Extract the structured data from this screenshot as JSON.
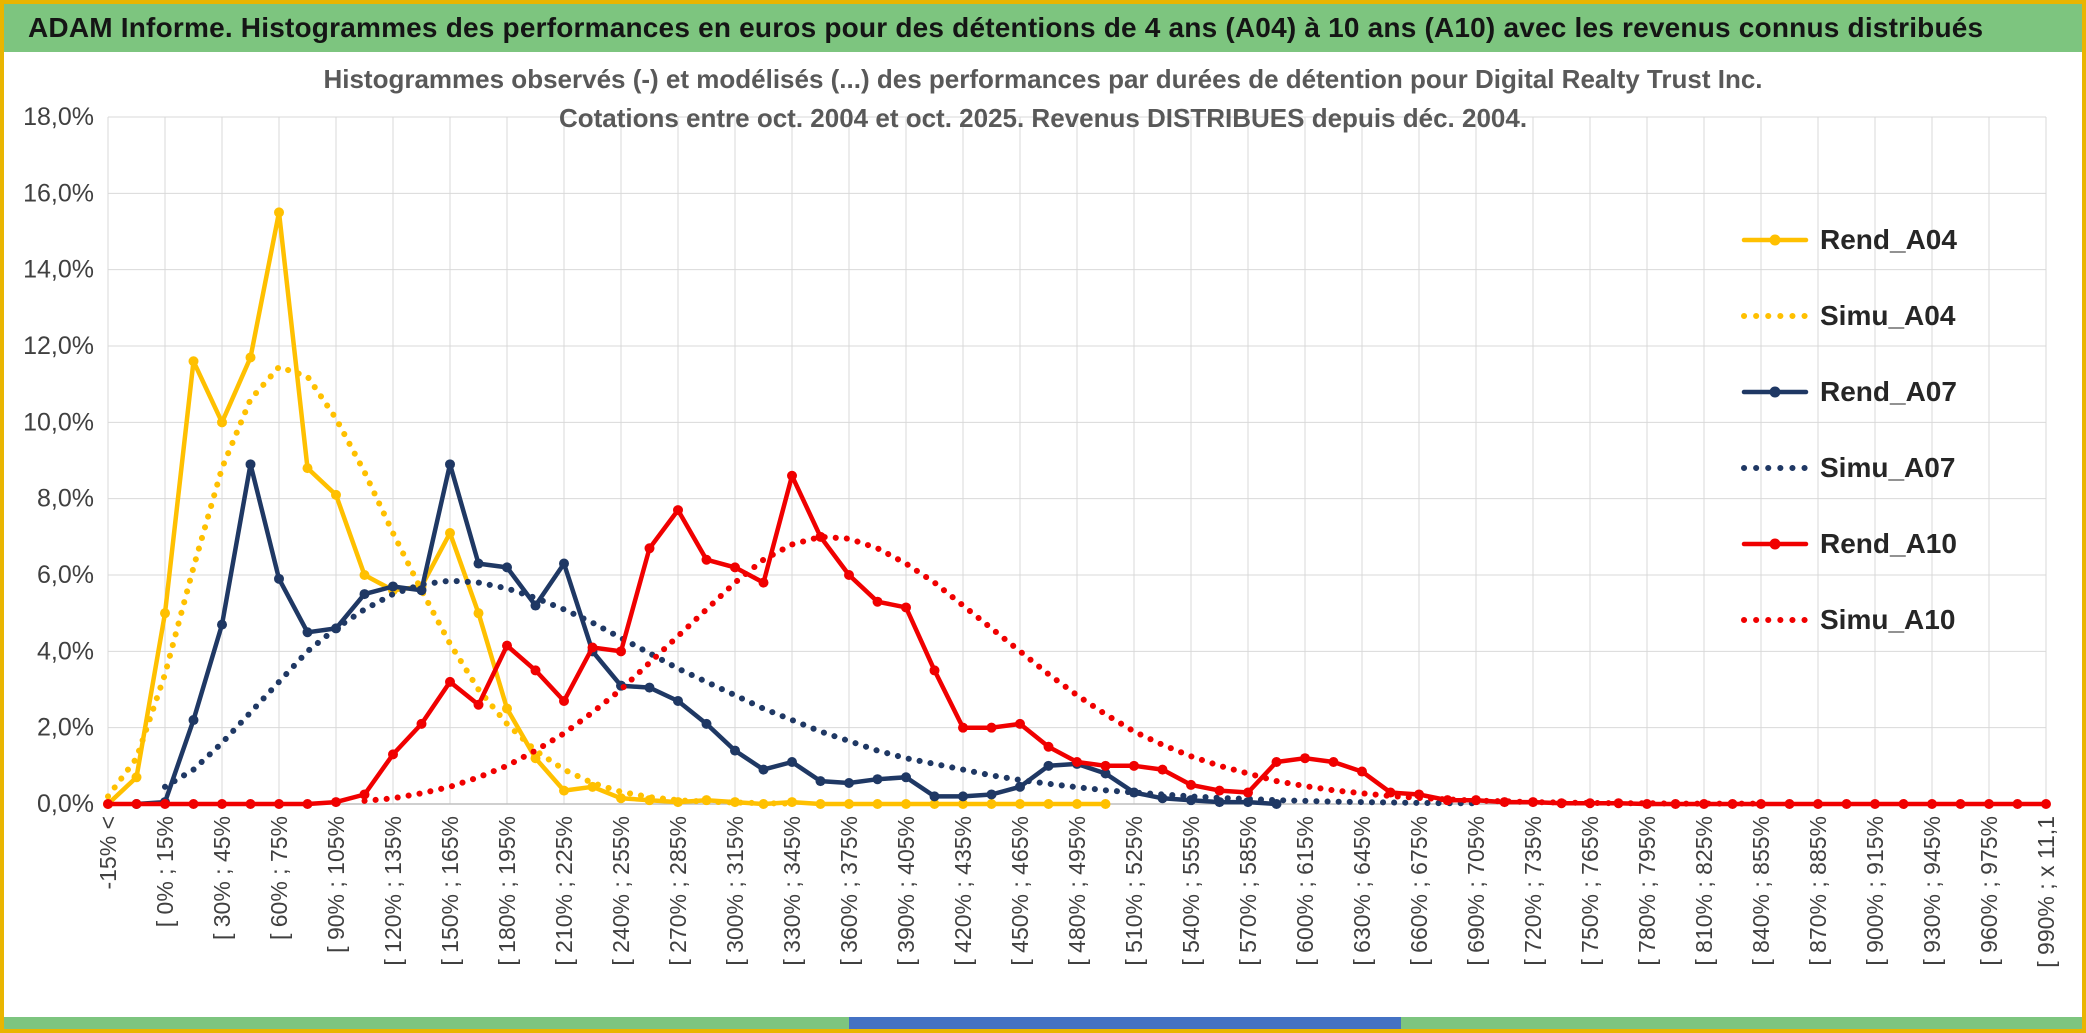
{
  "header": {
    "title": "ADAM Informe. Histogrammes des performances en euros pour des détentions de 4 ans (A04) à 10 ans (A10) avec les revenus connus distribués"
  },
  "colors": {
    "frame_border": "#E9B500",
    "header_bg": "#7DC57F",
    "bottom_bar_green": "#7DC57F",
    "scrollbar_blue": "#4472C4",
    "grid": "#D9D9D9",
    "axis_line": "#BFBFBF",
    "axis_text": "#404040",
    "title_text": "#595959",
    "gold": "#FFC000",
    "navy": "#1F3864",
    "red": "#F00000"
  },
  "chart_data": {
    "type": "line",
    "title": "Histogrammes observés (-) et modélisés (...) des performances par durées de détention pour Digital Realty Trust Inc.",
    "subtitle": "Cotations entre oct. 2004 et oct. 2025. Revenus DISTRIBUES depuis déc. 2004.",
    "xlabel": "",
    "ylabel": "",
    "ylim": [
      0,
      18
    ],
    "y_step": 2,
    "grid": true,
    "legend_position": "right",
    "y_tick_labels": [
      "0,0%",
      "2,0%",
      "4,0%",
      "6,0%",
      "8,0%",
      "10,0%",
      "12,0%",
      "14,0%",
      "16,0%",
      "18,0%"
    ],
    "bins_per_tick": 2,
    "n_bins": 69,
    "x_tick_labels": [
      "-15% <",
      "[ 0% ; 15%",
      "[ 30% ; 45%",
      "[ 60% ; 75%",
      "[ 90% ; 105%",
      "[ 120% ; 135%",
      "[ 150% ; 165%",
      "[ 180% ; 195%",
      "[ 210% ; 225%",
      "[ 240% ; 255%",
      "[ 270% ; 285%",
      "[ 300% ; 315%",
      "[ 330% ; 345%",
      "[ 360% ; 375%",
      "[ 390% ; 405%",
      "[ 420% ; 435%",
      "[ 450% ; 465%",
      "[ 480% ; 495%",
      "[ 510% ; 525%",
      "[ 540% ; 555%",
      "[ 570% ; 585%",
      "[ 600% ; 615%",
      "[ 630% ; 645%",
      "[ 660% ; 675%",
      "[ 690% ; 705%",
      "[ 720% ; 735%",
      "[ 750% ; 765%",
      "[ 780% ; 795%",
      "[ 810% ; 825%",
      "[ 840% ; 855%",
      "[ 870% ; 885%",
      "[ 900% ; 915%",
      "[ 930% ; 945%",
      "[ 960% ; 975%",
      "[ 990% ; x 11,1"
    ],
    "series": [
      {
        "name": "Rend_A04",
        "color": "#FFC000",
        "style": "solid",
        "markers": true,
        "start": 0,
        "values": [
          0,
          0.7,
          5.0,
          11.6,
          10.0,
          11.7,
          15.5,
          8.8,
          8.1,
          6.0,
          5.6,
          5.7,
          7.1,
          5.0,
          2.5,
          1.2,
          0.35,
          0.45,
          0.15,
          0.1,
          0.05,
          0.1,
          0.05,
          0,
          0.05,
          0,
          0,
          0,
          0,
          0,
          0,
          0,
          0,
          0,
          0,
          0
        ]
      },
      {
        "name": "Simu_A04",
        "color": "#FFC000",
        "style": "dotted",
        "markers": false,
        "start": 0,
        "values": [
          0.2,
          1.2,
          3.4,
          6.2,
          8.8,
          10.6,
          11.45,
          11.2,
          10.1,
          8.7,
          7.1,
          5.6,
          4.2,
          3.0,
          2.1,
          1.4,
          0.9,
          0.55,
          0.32,
          0.18,
          0.1,
          0.06,
          0.04,
          0.02,
          0.01
        ]
      },
      {
        "name": "Rend_A07",
        "color": "#1F3864",
        "style": "solid",
        "markers": true,
        "start": 1,
        "values": [
          0,
          0.05,
          2.2,
          4.7,
          8.9,
          5.9,
          4.5,
          4.6,
          5.5,
          5.7,
          5.6,
          8.9,
          6.3,
          6.2,
          5.2,
          6.3,
          4.0,
          3.1,
          3.05,
          2.7,
          2.1,
          1.4,
          0.9,
          1.1,
          0.6,
          0.55,
          0.65,
          0.7,
          0.2,
          0.2,
          0.25,
          0.45,
          1.0,
          1.05,
          0.8,
          0.3,
          0.15,
          0.1,
          0.05,
          0.05,
          0
        ]
      },
      {
        "name": "Simu_A07",
        "color": "#1F3864",
        "style": "dotted",
        "markers": false,
        "start": 2,
        "values": [
          0.45,
          0.9,
          1.6,
          2.4,
          3.2,
          4.0,
          4.6,
          5.1,
          5.5,
          5.75,
          5.85,
          5.8,
          5.65,
          5.4,
          5.1,
          4.75,
          4.35,
          3.95,
          3.55,
          3.2,
          2.85,
          2.5,
          2.2,
          1.9,
          1.65,
          1.4,
          1.2,
          1.05,
          0.9,
          0.75,
          0.63,
          0.53,
          0.44,
          0.36,
          0.3,
          0.25,
          0.2,
          0.16,
          0.13,
          0.1,
          0.08,
          0.06,
          0.05,
          0.04,
          0.03,
          0.02,
          0.02
        ]
      },
      {
        "name": "Rend_A10",
        "color": "#F00000",
        "style": "solid",
        "markers": true,
        "start": 0,
        "values": [
          0,
          0,
          0,
          0,
          0,
          0,
          0,
          0,
          0.05,
          0.25,
          1.3,
          2.1,
          3.2,
          2.6,
          4.15,
          3.5,
          2.7,
          4.1,
          4.0,
          6.7,
          7.7,
          6.4,
          6.2,
          5.8,
          8.6,
          7.0,
          6.0,
          5.3,
          5.15,
          3.5,
          2.0,
          2.0,
          2.1,
          1.5,
          1.1,
          1.0,
          1.0,
          0.9,
          0.5,
          0.35,
          0.3,
          1.1,
          1.2,
          1.1,
          0.85,
          0.3,
          0.25,
          0.1,
          0.1,
          0.05,
          0.05,
          0.02,
          0.02,
          0.02,
          0,
          0,
          0,
          0,
          0,
          0,
          0,
          0,
          0,
          0,
          0,
          0,
          0,
          0,
          0
        ]
      },
      {
        "name": "Simu_A10",
        "color": "#F00000",
        "style": "dotted",
        "markers": false,
        "start": 9,
        "values": [
          0.08,
          0.15,
          0.28,
          0.45,
          0.7,
          1.0,
          1.4,
          1.85,
          2.4,
          3.0,
          3.7,
          4.4,
          5.1,
          5.8,
          6.4,
          6.8,
          7.0,
          6.95,
          6.7,
          6.3,
          5.8,
          5.2,
          4.6,
          4.0,
          3.4,
          2.85,
          2.35,
          1.9,
          1.55,
          1.25,
          1.0,
          0.8,
          0.6,
          0.47,
          0.36,
          0.28,
          0.21,
          0.16,
          0.12,
          0.09,
          0.07,
          0.05,
          0.04,
          0.03,
          0.02,
          0.02,
          0.01,
          0.01,
          0.01,
          0.01
        ]
      }
    ]
  }
}
